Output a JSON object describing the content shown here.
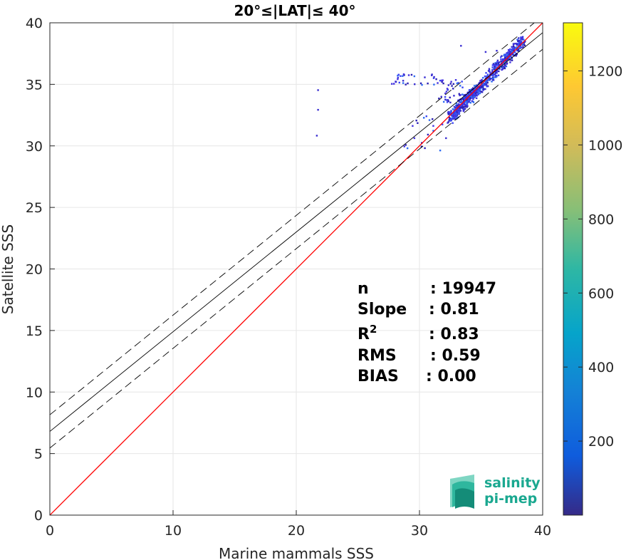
{
  "chart_data": {
    "type": "heatmap",
    "title": "20°≤|LAT|≤ 40°",
    "xlabel": "Marine mammals SSS",
    "ylabel": "Satellite SSS",
    "xlim": [
      0,
      40
    ],
    "ylim": [
      0,
      40
    ],
    "xticks": [
      "0",
      "10",
      "20",
      "30",
      "40"
    ],
    "yticks": [
      "0",
      "5",
      "10",
      "15",
      "20",
      "25",
      "30",
      "35",
      "40"
    ],
    "grid": true,
    "colorbar": {
      "colormap": "parula",
      "range": [
        0,
        1330
      ],
      "ticks": [
        "200",
        "400",
        "600",
        "800",
        "1000",
        "1200"
      ],
      "tick_values": [
        200,
        400,
        600,
        800,
        1000,
        1200
      ]
    },
    "identity_line": {
      "color": "#ff0000",
      "slope": 1,
      "intercept": 0
    },
    "regression_line": {
      "color": "#000000",
      "slope": 0.81,
      "intercept": 6.8
    },
    "confidence_band": {
      "color": "#000000",
      "dash": true,
      "offsets": [
        1.35,
        -1.35
      ]
    },
    "stats": [
      {
        "label": "n",
        "value": ": 19947"
      },
      {
        "label": "Slope",
        "value": ": 0.81"
      },
      {
        "label": "R2",
        "value": ": 0.83"
      },
      {
        "label": "RMS",
        "value": ": 0.59"
      },
      {
        "label": "BIAS",
        "value": ": 0.00"
      }
    ],
    "density_clusters": [
      {
        "x": [
          32.4,
          34.4
        ],
        "y": [
          32.3,
          34.6
        ],
        "density": 80
      },
      {
        "x": [
          34.2,
          36.6
        ],
        "y": [
          34.0,
          36.8
        ],
        "density": 60
      },
      {
        "x": [
          36.6,
          38.3
        ],
        "y": [
          36.7,
          38.6
        ],
        "density": 50
      },
      {
        "x": [
          27.5,
          31.5
        ],
        "y": [
          35.0,
          35.9
        ],
        "density": 8
      },
      {
        "x": [
          31.5,
          33.5
        ],
        "y": [
          33.5,
          35.5
        ],
        "density": 10
      },
      {
        "x": [
          28.5,
          32.3
        ],
        "y": [
          28.8,
          32.5
        ],
        "density": 5
      }
    ],
    "outliers": [
      [
        21.7,
        34.6
      ],
      [
        21.7,
        33.0
      ],
      [
        21.6,
        30.9
      ],
      [
        33.3,
        38.2
      ],
      [
        35.3,
        37.7
      ],
      [
        36.2,
        37.8
      ]
    ]
  },
  "logo": {
    "line1": "salinity",
    "line2": "pi-mep"
  }
}
